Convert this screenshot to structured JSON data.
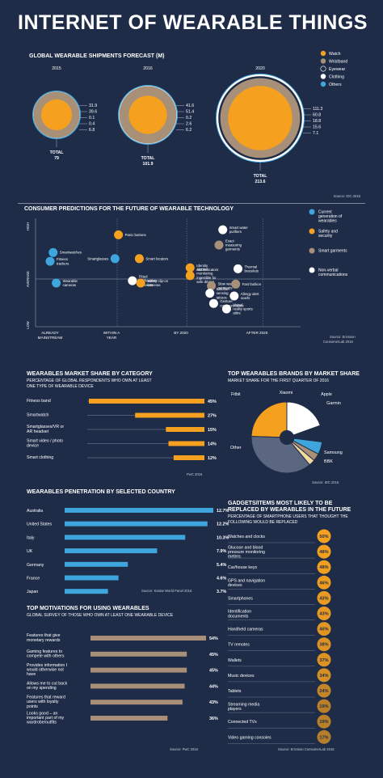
{
  "title": "INTERNET OF WEARABLE THINGS",
  "shipments": {
    "title": "GLOBAL WEARABLE SHIPMENTS FORECAST (M)",
    "source": "Source: IDC 2016",
    "total_label": "TOTAL"
  },
  "predictions": {
    "title": "CONSUMER PREDICTIONS FOR THE FUTURE OF WEARABLE TECHNOLOGY",
    "source_line1": "Source: Ericsson",
    "source_line2": "ConsumerLab 2016"
  },
  "share_category": {
    "title": "WEARABLES MARKET SHARE BY CATEGORY",
    "subtitle_line1": "PERCENTAGE OF GLOBAL RESPONDENTS WHO OWN AT LEAST",
    "subtitle_line2": "ONE TYPE OF WEARABLE DEVICE",
    "source": "PwC 2016"
  },
  "brands": {
    "title": "TOP WEARABLES BRANDS BY MARKET SHARE",
    "subtitle": "MARKET SHARE FOR THE FIRST QUARTER OF 2016",
    "source": "Source: IDC 2016"
  },
  "penetration": {
    "title": "WEARABLES PENETRATION BY SELECTED COUNTRY",
    "source": "Source: Kantar World Panel 2016"
  },
  "replaced": {
    "title_line1": "GADGETS/ITEMS MOST LIKELY TO BE",
    "title_line2": "REPLACED BY WEARABLES IN THE FUTURE",
    "subtitle_line1": "PERCENTAGE OF SMARTPHONE USERS THAT THOUGHT THE",
    "subtitle_line2": "FOLLOWING WOULD BE REPLACED",
    "source": "Source: Ericsson ConsumerLab 2016"
  },
  "motivations": {
    "title": "TOP MOTIVATIONS FOR USING WEARABLES",
    "subtitle": "GLOBAL SURVEY OF THOSE WHO OWN AT LEAST ONE WEARABLE DEVICE",
    "source": "Source: PwC 2016"
  },
  "colors": {
    "background": "#1e2c48",
    "watch": "#f5a11f",
    "wristband": "#a89078",
    "eyewear": "#1e2c48",
    "clothing": "#ffffff",
    "others": "#3fa6dd",
    "bar_blue": "#3fa6dd",
    "bar_orange": "#f5a11f",
    "bar_tan": "#a89078",
    "brand_other": "#5b6680"
  },
  "chart_data": [
    {
      "id": "shipments",
      "type": "pie",
      "legend": [
        "Watch",
        "Wristband",
        "Eyewear",
        "Clothing",
        "Others"
      ],
      "legend_colors": [
        "#f5a11f",
        "#a89078",
        "#1e2c48",
        "#ffffff",
        "#3fa6dd"
      ],
      "years": [
        {
          "year": "2015",
          "values": [
            31.9,
            39.6,
            0.1,
            0.4,
            6.8
          ],
          "labels": [
            "31.9",
            "39.6",
            "0.1",
            "0.4",
            "6.8"
          ],
          "total": "79"
        },
        {
          "year": "2016",
          "values": [
            41.6,
            51.4,
            0.2,
            2.6,
            6.2
          ],
          "labels": [
            "41.6",
            "51.4",
            "0.2",
            "2.6",
            "6.2"
          ],
          "total": "101.9"
        },
        {
          "year": "2020",
          "values": [
            111.3,
            60.8,
            18.8,
            15.6,
            7.1
          ],
          "labels": [
            "111.3",
            "60.8",
            "18.8",
            "15.6",
            "7.1"
          ],
          "total": "213.6"
        }
      ]
    },
    {
      "id": "predictions",
      "type": "scatter",
      "y_axis": [
        "HIGH",
        "AVERAGE",
        "LOW"
      ],
      "x_axis": [
        "ALREADY MAINSTREAM",
        "WITHIN A YEAR",
        "BY 2020",
        "AFTER 2020"
      ],
      "legend": [
        "Current generation of wearables",
        "Safety and security",
        "Smart garments",
        "Non-verbal communications"
      ],
      "points": [
        {
          "label": "Smartwatches",
          "group": 0,
          "x": 1.05,
          "y": 0.78
        },
        {
          "label": "Fitness trackers",
          "group": 0,
          "x": 1.0,
          "y": 0.52
        },
        {
          "label": "Wearable cameras",
          "group": 0,
          "x": 1.1,
          "y": -0.12
        },
        {
          "label": "Panic buttons",
          "group": 1,
          "x": 2.1,
          "y": 1.3
        },
        {
          "label": "Smartglasses",
          "group": 0,
          "x": 2.05,
          "y": 0.6
        },
        {
          "label": "Smart locators",
          "group": 1,
          "x": 2.4,
          "y": 0.6
        },
        {
          "label": "Fitted notifications bracelets",
          "group": 3,
          "x": 2.3,
          "y": -0.05
        },
        {
          "label": "Safety clip-on cameras",
          "group": 1,
          "x": 2.42,
          "y": -0.12
        },
        {
          "label": "Smart water purifiers",
          "group": 3,
          "x": 3.55,
          "y": 1.45
        },
        {
          "label": "Exact measuring garments",
          "group": 2,
          "x": 3.5,
          "y": 1.0
        },
        {
          "label": "Identity authenticators",
          "group": 1,
          "x": 3.12,
          "y": 0.33
        },
        {
          "label": "Alcohol monitoring ingestible for safe driving",
          "group": 1,
          "x": 3.12,
          "y": 0.1
        },
        {
          "label": "Thermal bracelets",
          "group": 3,
          "x": 3.75,
          "y": 0.3
        },
        {
          "label": "Slow wash garments",
          "group": 2,
          "x": 3.4,
          "y": -0.2
        },
        {
          "label": "Fast fashion",
          "group": 2,
          "x": 3.72,
          "y": -0.15
        },
        {
          "label": "Emotion sensing tattoos",
          "group": 3,
          "x": 3.38,
          "y": -0.42
        },
        {
          "label": "Allergy alert scarfs",
          "group": 3,
          "x": 3.7,
          "y": -0.5
        },
        {
          "label": "Gesture communicators",
          "group": 3,
          "x": 3.43,
          "y": -0.72
        },
        {
          "label": "Virtual reality sports attire",
          "group": 3,
          "x": 3.6,
          "y": -0.88
        }
      ]
    },
    {
      "id": "share_category",
      "type": "bar",
      "categories": [
        "Fitness band",
        "Smartwatch",
        "Smartglasses/VR or AR headset",
        "Smart video / photo device",
        "Smart clothing"
      ],
      "values": [
        45,
        27,
        15,
        14,
        12
      ],
      "value_labels": [
        "45%",
        "27%",
        "15%",
        "14%",
        "12%"
      ],
      "xlim": [
        0,
        45
      ]
    },
    {
      "id": "brands",
      "type": "pie",
      "categories": [
        "Fitbit",
        "Xiaomi",
        "Apple",
        "Garmin",
        "Samsung",
        "BBK",
        "Other"
      ],
      "values": [
        24.5,
        19.5,
        7.5,
        5.7,
        3.4,
        2.8,
        36.6
      ],
      "colors": [
        "#f5a11f",
        "#ffffff",
        "#1e2c48",
        "#3fa6dd",
        "#a89078",
        "#f3d9a0",
        "#5b6680"
      ]
    },
    {
      "id": "penetration",
      "type": "bar",
      "categories": [
        "Australia",
        "United States",
        "Italy",
        "UK",
        "Germany",
        "France",
        "Japan"
      ],
      "values": [
        12.7,
        12.2,
        10.3,
        7.9,
        5.4,
        4.6,
        3.7
      ],
      "value_labels": [
        "12.7%",
        "12.2%",
        "10.3%",
        "7.9%",
        "5.4%",
        "4.6%",
        "3.7%"
      ],
      "xlim": [
        0,
        12.7
      ]
    },
    {
      "id": "replaced",
      "type": "bar",
      "categories": [
        "Watches and clocks",
        "Glucose and blood pressure monitoring meters",
        "Car/house keys",
        "GPS and navigation devices",
        "Smartphones",
        "Identification documents",
        "Handheld cameras",
        "TV remotes",
        "Wallets",
        "Music devices",
        "Tablets",
        "Streaming media players",
        "Connected TVs",
        "Video gaming consoles"
      ],
      "values": [
        50,
        48,
        48,
        46,
        43,
        43,
        40,
        38,
        37,
        34,
        24,
        19,
        19,
        17
      ],
      "value_labels": [
        "50%",
        "48%",
        "48%",
        "46%",
        "43%",
        "43%",
        "40%",
        "38%",
        "37%",
        "34%",
        "24%",
        "19%",
        "19%",
        "17%"
      ]
    },
    {
      "id": "motivations",
      "type": "bar",
      "categories": [
        "Features that give monetary rewards",
        "Gaming features to compete with others",
        "Provides information I would otherwise not have",
        "Allows me to cut back on my spending",
        "Features that reward users with loyalty points",
        "Looks good – an important part of my wardrobe/outfits"
      ],
      "values": [
        54,
        45,
        45,
        44,
        43,
        36
      ],
      "value_labels": [
        "54%",
        "45%",
        "45%",
        "44%",
        "43%",
        "36%"
      ],
      "xlim": [
        0,
        54
      ]
    }
  ]
}
